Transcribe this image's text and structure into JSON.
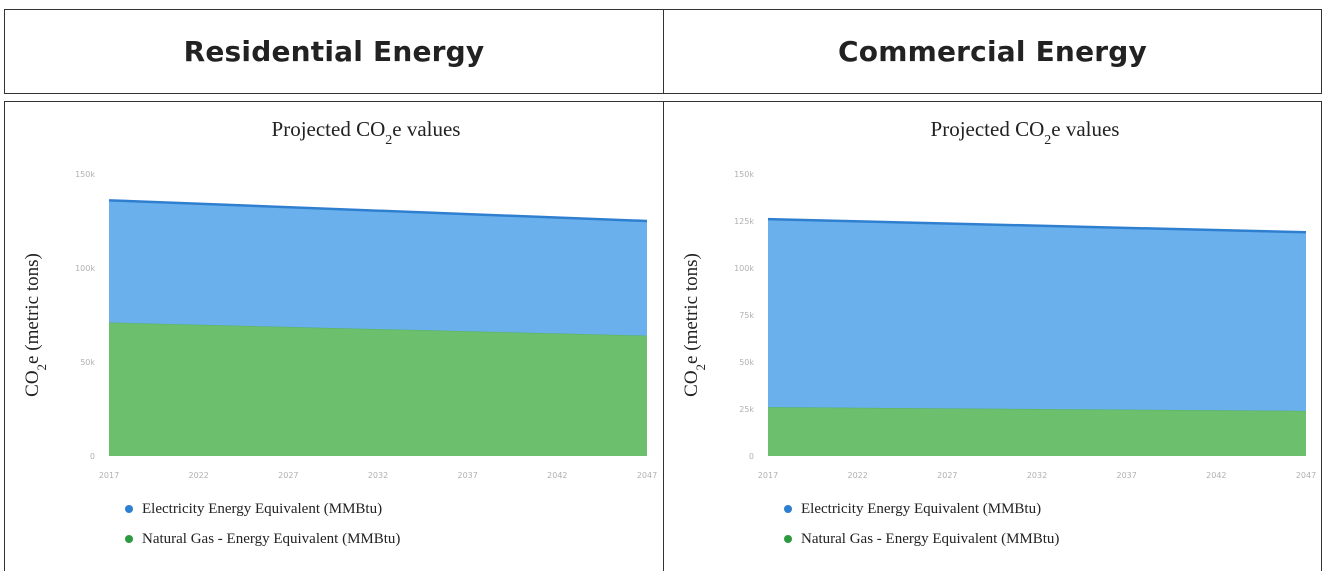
{
  "panels": [
    {
      "header": "Residential Energy",
      "legend": [
        {
          "label": "Electricity Energy Equivalent (MMBtu)",
          "color": "#3f8fd8"
        },
        {
          "label": "Natural Gas - Energy Equivalent (MMBtu)",
          "color": "#3aa548"
        }
      ]
    },
    {
      "header": "Commercial Energy",
      "legend": [
        {
          "label": "Electricity Energy Equivalent (MMBtu)",
          "color": "#3f8fd8"
        },
        {
          "label": "Natural Gas - Energy Equivalent (MMBtu)",
          "color": "#3aa548"
        }
      ]
    }
  ],
  "chart_data": [
    {
      "type": "area",
      "stacked": true,
      "title": "Projected CO2e values",
      "ylabel": "CO2e (metric tons)",
      "xlabel": "",
      "x": [
        2017,
        2047
      ],
      "ylim": [
        0,
        150
      ],
      "y_ticks": [
        0,
        50,
        100,
        150
      ],
      "y_tick_labels": [
        "0",
        "50k",
        "100k",
        "150k"
      ],
      "x_tick_labels": [
        "2017",
        "2022",
        "2027",
        "2032",
        "2037",
        "2042",
        "2047"
      ],
      "series": [
        {
          "name": "Natural Gas - Energy Equivalent (MMBtu)",
          "values": [
            71,
            64
          ],
          "color": "#6cbf6c"
        },
        {
          "name": "Electricity Energy Equivalent (MMBtu)",
          "values": [
            65,
            61
          ],
          "color": "#6ab0ec"
        }
      ],
      "legend_position": "bottom",
      "grid": false
    },
    {
      "type": "area",
      "stacked": true,
      "title": "Projected CO2e values",
      "ylabel": "CO2e (metric tons)",
      "xlabel": "",
      "x": [
        2017,
        2047
      ],
      "ylim": [
        0,
        150
      ],
      "y_ticks": [
        0,
        25,
        50,
        75,
        100,
        125,
        150
      ],
      "y_tick_labels": [
        "0",
        "25k",
        "50k",
        "75k",
        "100k",
        "125k",
        "150k"
      ],
      "x_tick_labels": [
        "2017",
        "2022",
        "2027",
        "2032",
        "2037",
        "2042",
        "2047"
      ],
      "series": [
        {
          "name": "Natural Gas - Energy Equivalent (MMBtu)",
          "values": [
            26,
            24
          ],
          "color": "#6cbf6c"
        },
        {
          "name": "Electricity Energy Equivalent (MMBtu)",
          "values": [
            100,
            95
          ],
          "color": "#6ab0ec"
        }
      ],
      "legend_position": "bottom",
      "grid": false
    }
  ]
}
